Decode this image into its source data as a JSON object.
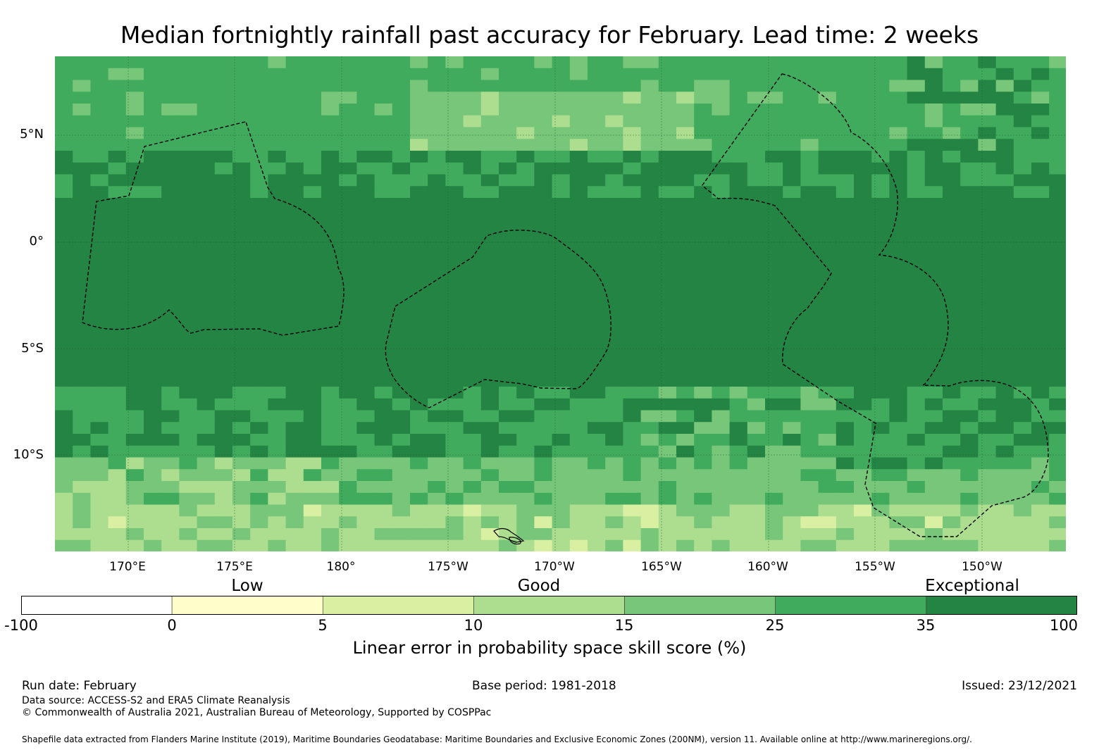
{
  "title": "Median fortnightly rainfall past accuracy for February. Lead time: 2 weeks",
  "map": {
    "lat_labels": [
      "5°N",
      "0°",
      "5°S",
      "10°S"
    ],
    "lon_labels": [
      "170°E",
      "175°E",
      "180°",
      "175°W",
      "170°W",
      "165°W",
      "160°W",
      "155°W",
      "150°W"
    ]
  },
  "legend": {
    "categories": [
      "Low",
      "Good",
      "Exceptional"
    ],
    "ticks": [
      "-100",
      "0",
      "5",
      "10",
      "15",
      "25",
      "35",
      "100"
    ],
    "colors": [
      "#ffffff",
      "#ffffcc",
      "#d9f0a3",
      "#addd8e",
      "#78c679",
      "#41ab5d",
      "#238443"
    ],
    "label": "Linear error in probability space skill score (%)"
  },
  "footer": {
    "run_date": "Run date: February",
    "base_period": "Base period: 1981-2018",
    "issued": "Issued: 23/12/2021",
    "data_source": "Data source: ACCESS-S2 and ERA5 Climate Reanalysis",
    "copyright": "© Commonwealth of Australia 2021, Australian Bureau of Meteorology, Supported by COSPPac",
    "shapefile": "Shapefile data extracted from Flanders Marine Institute (2019), Maritime Boundaries Geodatabase: Maritime Boundaries and Exclusive Economic Zones (200NM), version 11. Available online at http://www.marineregions.org/."
  }
}
